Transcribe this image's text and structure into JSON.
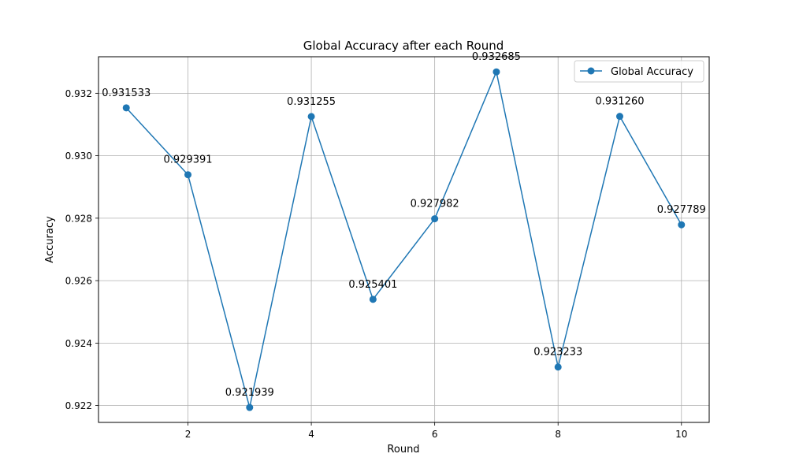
{
  "chart_data": {
    "type": "line",
    "title": "Global Accuracy after each Round",
    "xlabel": "Round",
    "ylabel": "Accuracy",
    "xlim": [
      0.55,
      10.45
    ],
    "ylim": [
      0.92146,
      0.93317
    ],
    "xticks": [
      2,
      4,
      6,
      8,
      10
    ],
    "xtick_labels": [
      "2",
      "4",
      "6",
      "8",
      "10"
    ],
    "yticks": [
      0.922,
      0.924,
      0.926,
      0.928,
      0.93,
      0.932
    ],
    "ytick_labels": [
      "0.922",
      "0.924",
      "0.926",
      "0.928",
      "0.930",
      "0.932"
    ],
    "grid": true,
    "legend": {
      "position": "top-right",
      "entries": [
        "Global Accuracy"
      ]
    },
    "series": [
      {
        "name": "Global Accuracy",
        "color": "#1f77b4",
        "marker": "circle",
        "x": [
          1,
          2,
          3,
          4,
          5,
          6,
          7,
          8,
          9,
          10
        ],
        "y": [
          0.931533,
          0.929391,
          0.921939,
          0.931255,
          0.925401,
          0.927982,
          0.932685,
          0.923233,
          0.93126,
          0.927789
        ],
        "data_labels": [
          "0.931533",
          "0.929391",
          "0.921939",
          "0.931255",
          "0.925401",
          "0.927982",
          "0.932685",
          "0.923233",
          "0.931260",
          "0.927789"
        ]
      }
    ]
  }
}
